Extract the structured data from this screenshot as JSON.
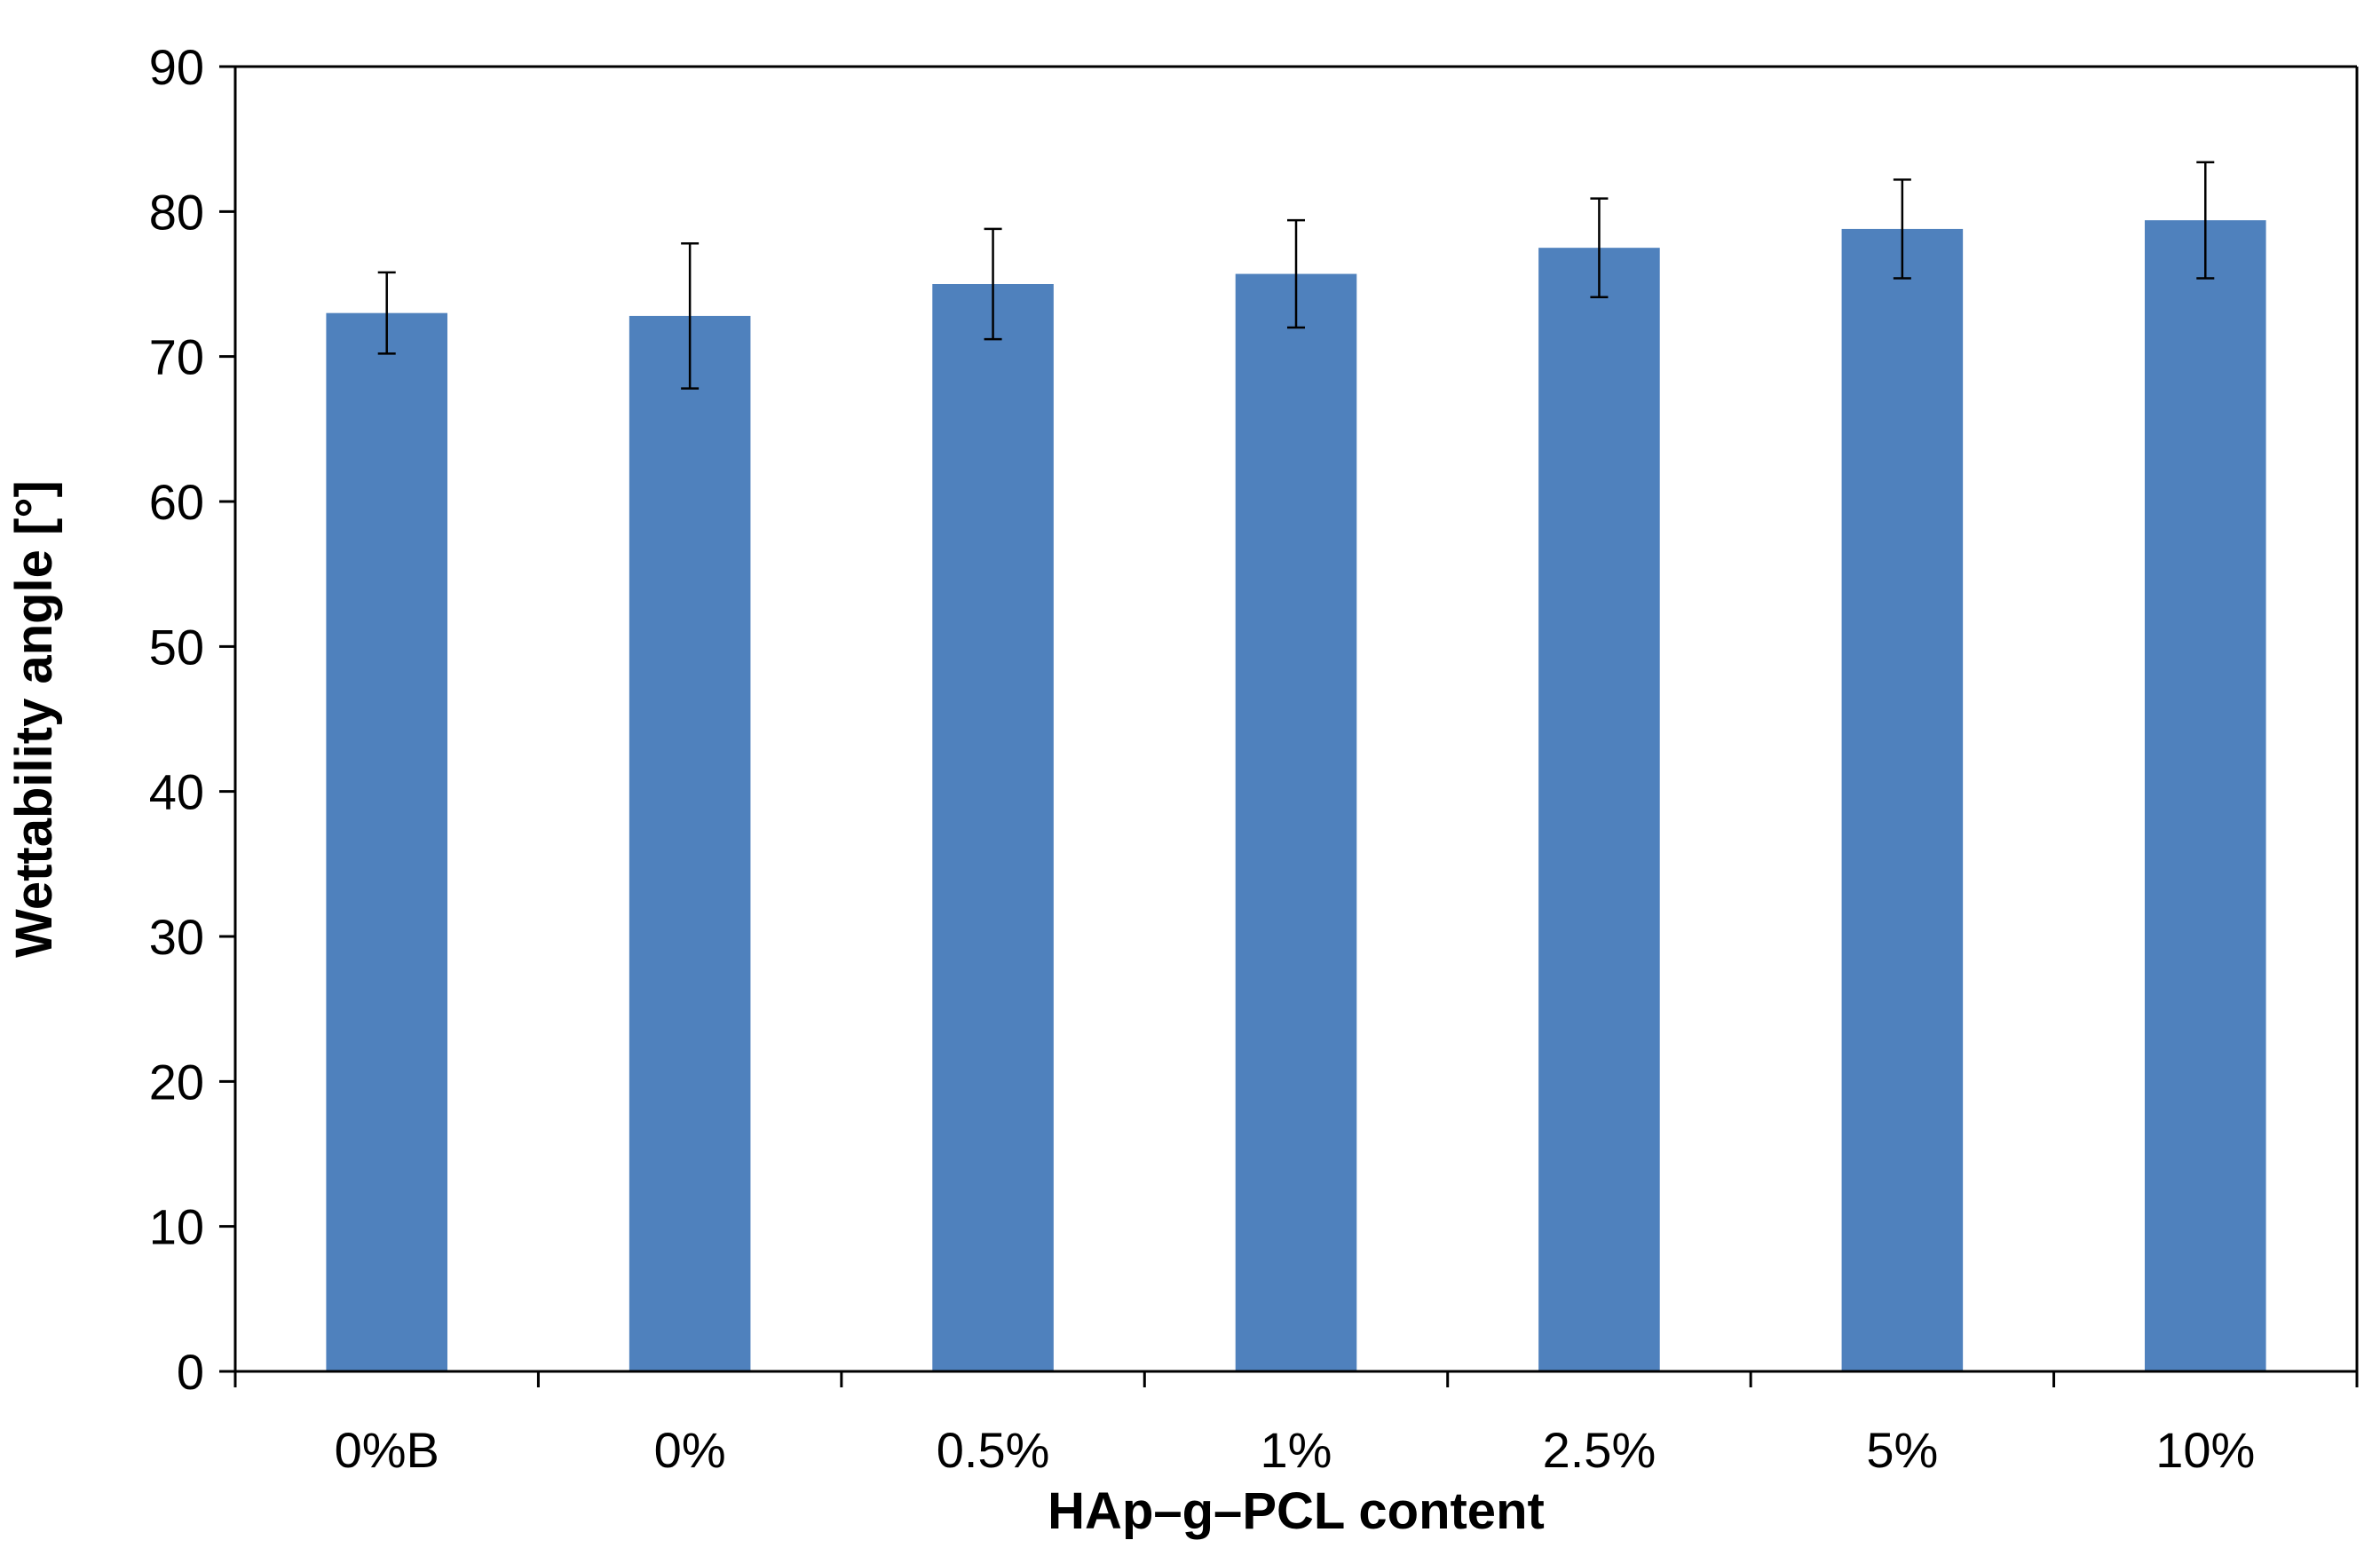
{
  "chart_data": {
    "type": "bar",
    "title": "",
    "xlabel": "HAp–g–PCL content",
    "ylabel": "Wettability angle [°]",
    "categories": [
      "0%B",
      "0%",
      "0.5%",
      "1%",
      "2.5%",
      "5%",
      "10%"
    ],
    "values": [
      73.0,
      72.8,
      75.0,
      75.7,
      77.5,
      78.8,
      79.4
    ],
    "error": [
      2.8,
      5.0,
      3.8,
      3.7,
      3.4,
      3.4,
      4.0
    ],
    "ylim": [
      0,
      90
    ],
    "yticks": [
      0,
      10,
      20,
      30,
      40,
      50,
      60,
      70,
      80,
      90
    ],
    "grid": false,
    "legend": "none",
    "bar_color": "#4F81BD",
    "axis_color": "#000000",
    "error_bar_color": "#000000"
  }
}
